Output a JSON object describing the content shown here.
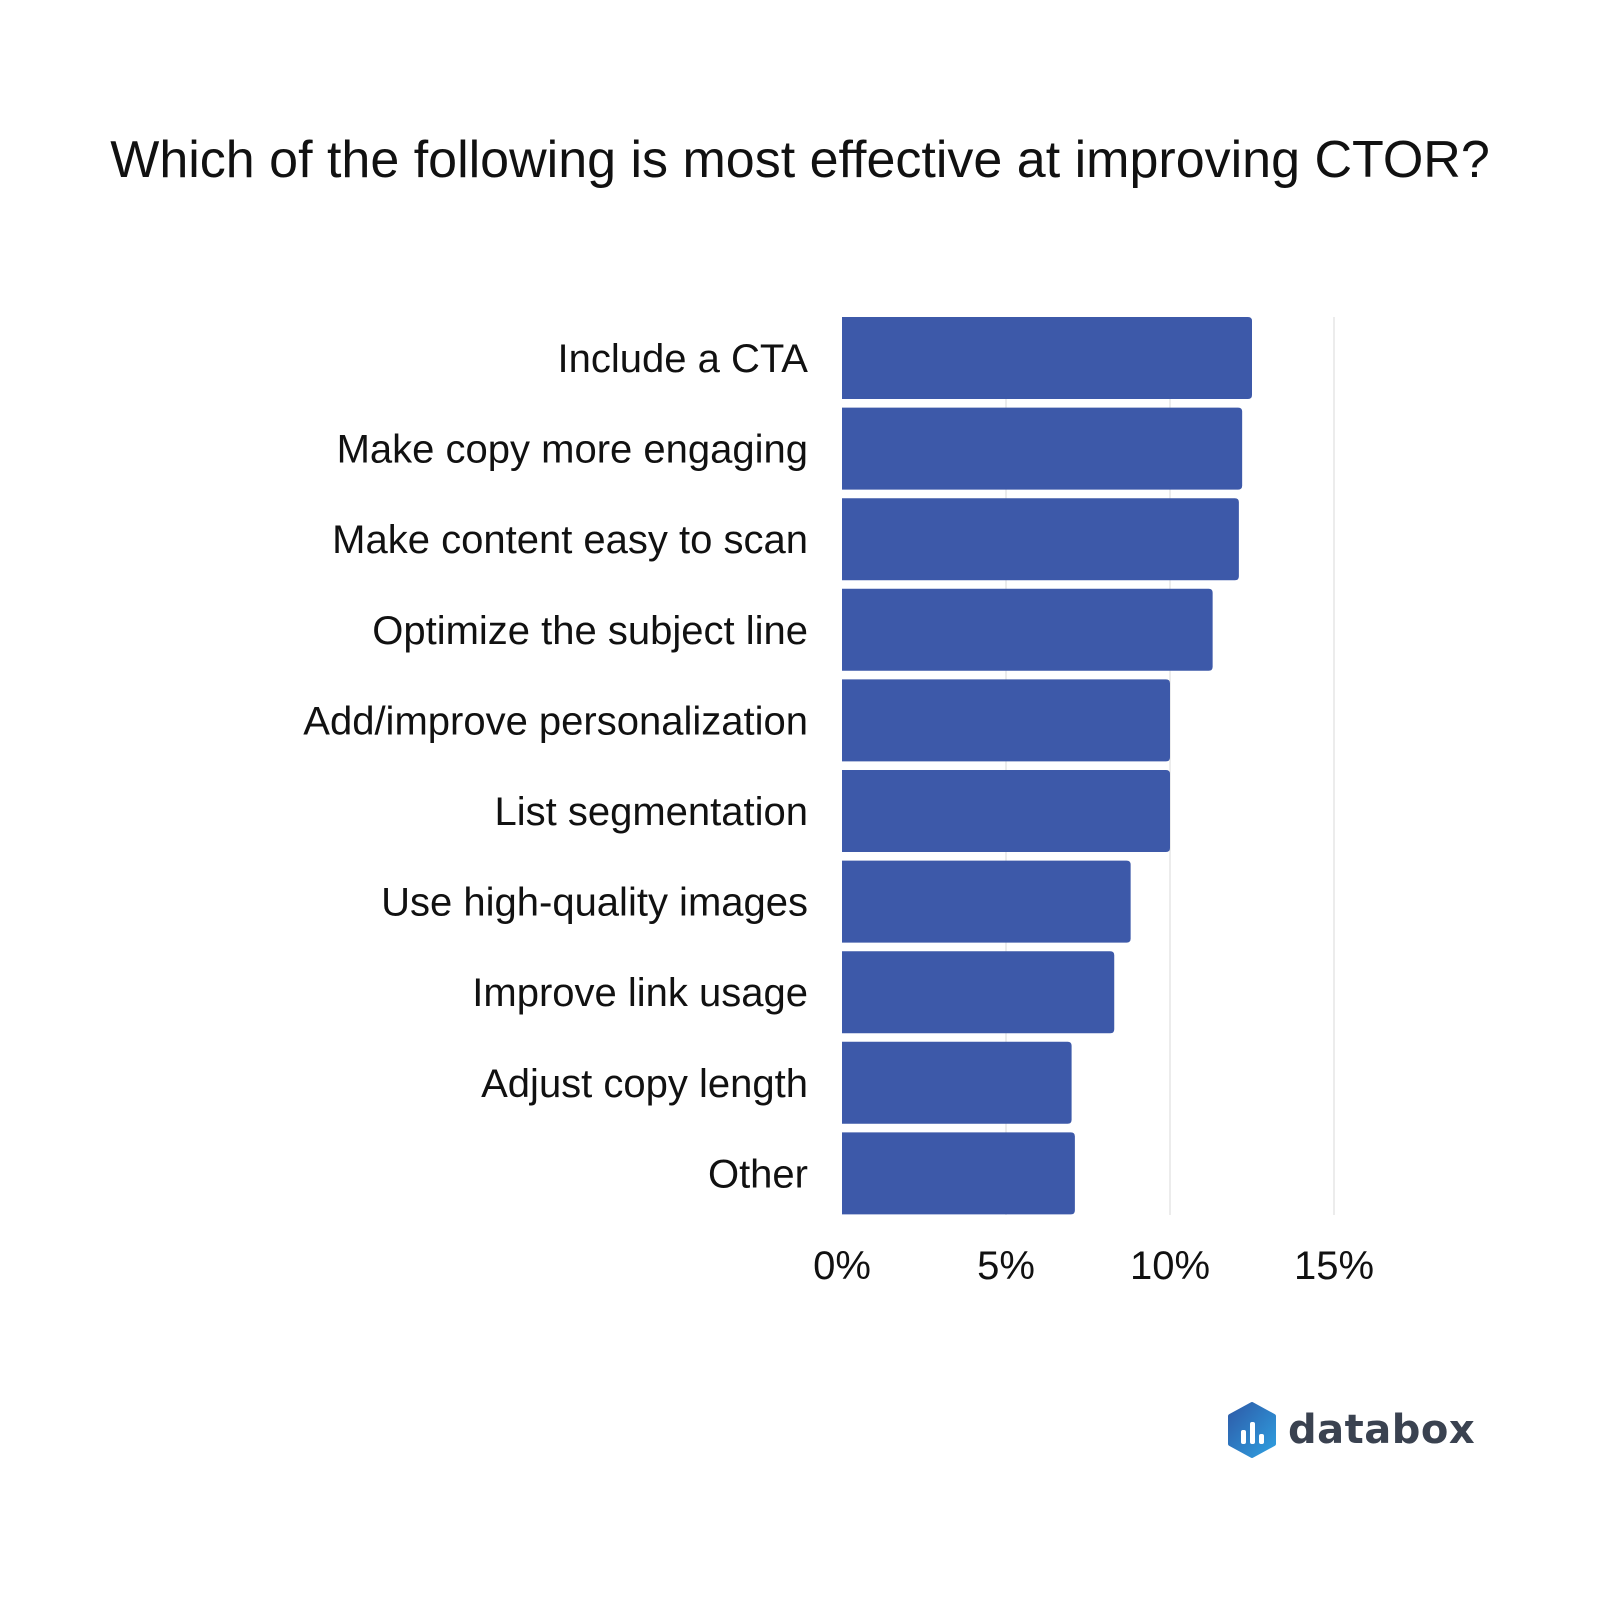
{
  "chart_data": {
    "type": "bar",
    "orientation": "horizontal",
    "title": "Which of the following is most effective at improving CTOR?",
    "categories": [
      "Include a CTA",
      "Make copy more engaging",
      "Make content easy to scan",
      "Optimize the subject line",
      "Add/improve personalization",
      "List segmentation",
      "Use high-quality images",
      "Improve link usage",
      "Adjust copy length",
      "Other"
    ],
    "values": [
      12.5,
      12.2,
      12.1,
      11.3,
      10.0,
      10.0,
      8.8,
      8.3,
      7.0,
      7.1
    ],
    "xlim": [
      0,
      15
    ],
    "xticks": [
      0,
      5,
      10,
      15
    ],
    "xtick_labels": [
      "0%",
      "5%",
      "10%",
      "15%"
    ],
    "xlabel": "",
    "ylabel": "",
    "grid": "vertical",
    "legend": "none",
    "bar_color": "#3d59a9",
    "grid_color": "#e6e6e6"
  },
  "brand": {
    "name": "databox",
    "logo_icon": "databox-hexagon-logo",
    "colors": [
      "#2e5ba8",
      "#2f9fe0"
    ]
  }
}
